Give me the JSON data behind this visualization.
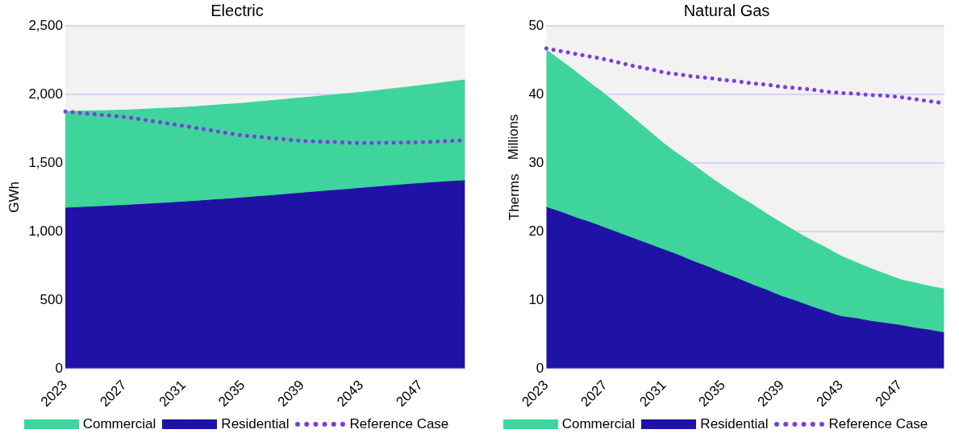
{
  "chart_data": [
    {
      "type": "area",
      "title": "Electric",
      "ylabel": "GWh",
      "stacked": true,
      "grid": "y",
      "legend": "bottom",
      "line_style": "dotted",
      "categories": [
        "2023",
        null,
        null,
        null,
        "2027",
        null,
        null,
        null,
        "2031",
        null,
        null,
        null,
        "2035",
        null,
        null,
        null,
        "2039",
        null,
        null,
        null,
        "2043",
        null,
        null,
        null,
        "2047",
        null,
        null,
        null
      ],
      "ylim": [
        0,
        2500
      ],
      "yticks": [
        {
          "value": 0,
          "label": "0"
        },
        {
          "value": 500,
          "label": "500"
        },
        {
          "value": 1000,
          "label": "1,000"
        },
        {
          "value": 1500,
          "label": "1,500"
        },
        {
          "value": 2000,
          "label": "2,000"
        },
        {
          "value": 2500,
          "label": "2,500"
        }
      ],
      "series": [
        {
          "name": "Residential",
          "color": "#1f12a5",
          "values": [
            1170,
            1175,
            1180,
            1185,
            1190,
            1196,
            1202,
            1208,
            1215,
            1222,
            1230,
            1237,
            1245,
            1254,
            1262,
            1271,
            1280,
            1289,
            1298,
            1306,
            1315,
            1324,
            1333,
            1342,
            1350,
            1357,
            1364,
            1370
          ]
        },
        {
          "name": "Commercial",
          "color": "#3ed49c",
          "values": [
            705,
            702,
            700,
            697,
            695,
            694,
            693,
            692,
            690,
            690,
            690,
            690,
            690,
            691,
            693,
            694,
            695,
            696,
            697,
            699,
            700,
            703,
            707,
            710,
            715,
            721,
            728,
            735
          ]
        },
        {
          "name": "Reference Case",
          "type": "line",
          "color": "#7b3fd9",
          "values": [
            1875,
            1865,
            1855,
            1845,
            1835,
            1820,
            1803,
            1787,
            1770,
            1752,
            1735,
            1717,
            1700,
            1690,
            1680,
            1670,
            1660,
            1656,
            1652,
            1648,
            1645,
            1646,
            1647,
            1649,
            1650,
            1655,
            1660,
            1665
          ]
        }
      ]
    },
    {
      "type": "area",
      "title": "Natural Gas",
      "ylabel": "Therms",
      "annotations": [
        "Millions"
      ],
      "stacked": true,
      "grid": "y",
      "legend": "bottom",
      "line_style": "dotted",
      "categories": [
        "2023",
        null,
        null,
        null,
        "2027",
        null,
        null,
        null,
        "2031",
        null,
        null,
        null,
        "2035",
        null,
        null,
        null,
        "2039",
        null,
        null,
        null,
        "2043",
        null,
        null,
        null,
        "2047",
        null,
        null,
        null
      ],
      "ylim": [
        0,
        50
      ],
      "yticks": [
        0,
        10,
        20,
        30,
        40,
        50
      ],
      "series": [
        {
          "name": "Residential",
          "color": "#1f12a5",
          "values": [
            23.5,
            22.8,
            22.0,
            21.3,
            20.5,
            19.7,
            18.9,
            18.1,
            17.3,
            16.5,
            15.6,
            14.8,
            13.9,
            13.1,
            12.2,
            11.4,
            10.5,
            9.8,
            9.0,
            8.3,
            7.6,
            7.3,
            6.9,
            6.6,
            6.3,
            5.9,
            5.6,
            5.2
          ]
        },
        {
          "name": "Commercial",
          "color": "#3ed49c",
          "values": [
            23.0,
            22.1,
            21.3,
            20.3,
            19.5,
            18.5,
            17.5,
            16.5,
            15.5,
            14.7,
            14.1,
            13.3,
            12.7,
            12.1,
            11.7,
            11.1,
            10.7,
            10.1,
            9.7,
            9.3,
            8.8,
            8.2,
            7.7,
            7.2,
            6.7,
            6.6,
            6.4,
            6.4
          ]
        },
        {
          "name": "Reference Case",
          "type": "line",
          "color": "#7b3fd9",
          "values": [
            46.7,
            46.3,
            45.9,
            45.5,
            45.1,
            44.6,
            44.1,
            43.7,
            43.2,
            42.9,
            42.6,
            42.4,
            42.1,
            41.9,
            41.6,
            41.4,
            41.1,
            40.9,
            40.7,
            40.4,
            40.2,
            40.1,
            39.9,
            39.8,
            39.6,
            39.3,
            39.0,
            38.7
          ]
        }
      ]
    }
  ]
}
